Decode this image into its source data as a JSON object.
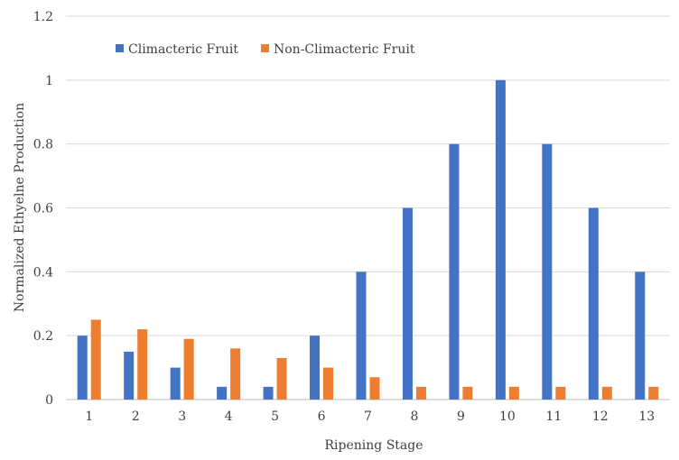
{
  "chart_data": {
    "type": "bar",
    "xlabel": "Ripening Stage",
    "ylabel": "Normalized Ethyelne Production",
    "ylim": [
      0,
      1.2
    ],
    "yticks": [
      "0",
      "0.2",
      "0.4",
      "0.6",
      "0.8",
      "1",
      "1.2"
    ],
    "categories": [
      "1",
      "2",
      "3",
      "4",
      "5",
      "6",
      "7",
      "8",
      "9",
      "10",
      "11",
      "12",
      "13"
    ],
    "grid": true,
    "legend_position": "top-left",
    "series": [
      {
        "name": "Climacteric Fruit",
        "color": "#4472C4",
        "values": [
          0.2,
          0.15,
          0.1,
          0.04,
          0.04,
          0.2,
          0.4,
          0.6,
          0.8,
          1.0,
          0.8,
          0.6,
          0.4
        ]
      },
      {
        "name": "Non-Climacteric Fruit",
        "color": "#ED7D31",
        "values": [
          0.25,
          0.22,
          0.19,
          0.16,
          0.13,
          0.1,
          0.07,
          0.04,
          0.04,
          0.04,
          0.04,
          0.04,
          0.04
        ]
      }
    ]
  }
}
